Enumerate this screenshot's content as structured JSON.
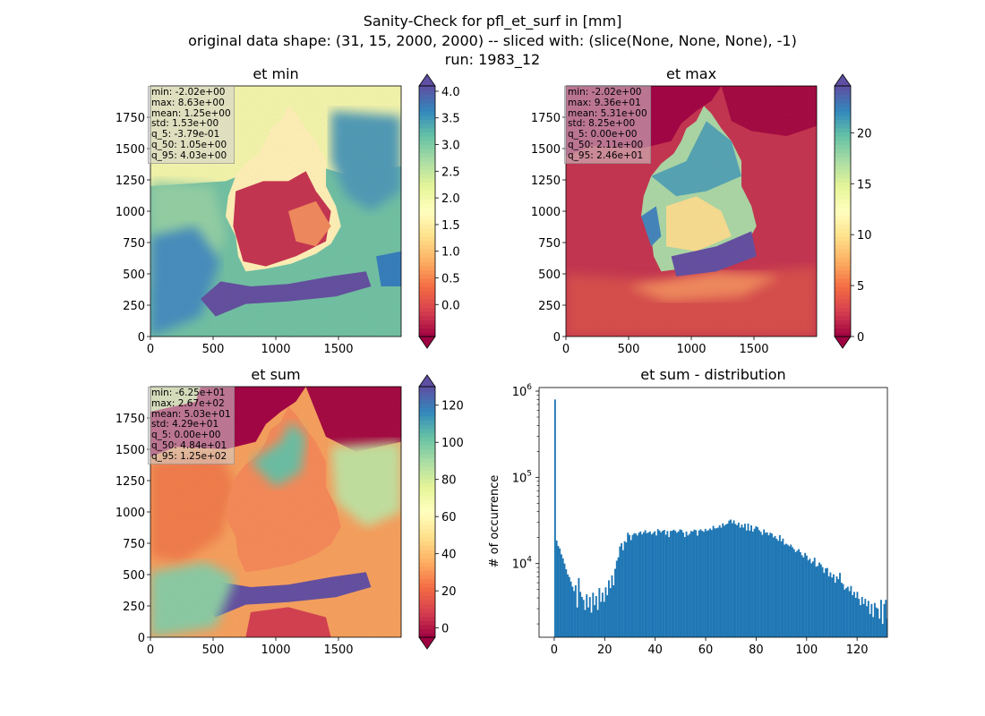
{
  "suptitle": [
    "Sanity-Check for pfl_et_surf in [mm]",
    "original data shape: (31, 15, 2000, 2000) -- sliced with: (slice(None, None, None), -1)",
    "run: 1983_12"
  ],
  "colors": {
    "spectral": [
      "#9e0142",
      "#d53e4f",
      "#f46d43",
      "#fdae61",
      "#fee08b",
      "#ffffbf",
      "#e6f598",
      "#abdda4",
      "#66c2a5",
      "#3288bd",
      "#5e4fa2"
    ],
    "bar": "#1f77b4"
  },
  "chart_data": [
    {
      "type": "heatmap",
      "title": "et min",
      "x_ticks": [
        0,
        500,
        1000,
        1500
      ],
      "y_ticks": [
        0,
        250,
        500,
        750,
        1000,
        1250,
        1500,
        1750
      ],
      "xlim": [
        0,
        2000
      ],
      "ylim": [
        0,
        2000
      ],
      "colorbar": {
        "min": -0.6,
        "max": 4.1,
        "ticks": [
          "0.0",
          "0.5",
          "1.0",
          "1.5",
          "2.0",
          "2.5",
          "3.0",
          "3.5",
          "4.0"
        ],
        "tick_values": [
          0,
          0.5,
          1,
          1.5,
          2,
          2.5,
          3,
          3.5,
          4
        ],
        "extend": "both"
      },
      "stats": [
        "min: -2.02e+00",
        "max: 8.63e+00",
        "mean: 1.25e+00",
        "std: 1.53e+00",
        "q_5: -3.79e-01",
        "q_50: 1.05e+00",
        "q_95: 4.03e+00"
      ]
    },
    {
      "type": "heatmap",
      "title": "et max",
      "x_ticks": [
        0,
        500,
        1000,
        1500
      ],
      "y_ticks": [
        0,
        250,
        500,
        750,
        1000,
        1250,
        1500,
        1750
      ],
      "xlim": [
        0,
        2000
      ],
      "ylim": [
        0,
        2000
      ],
      "colorbar": {
        "min": 0,
        "max": 24.6,
        "ticks": [
          "0",
          "5",
          "10",
          "15",
          "20"
        ],
        "tick_values": [
          0,
          5,
          10,
          15,
          20
        ],
        "extend": "both"
      },
      "stats": [
        "min: -2.02e+00",
        "max: 9.36e+01",
        "mean: 5.31e+00",
        "std: 8.25e+00",
        "q_5: 0.00e+00",
        "q_50: 2.11e+00",
        "q_95: 2.46e+01"
      ]
    },
    {
      "type": "heatmap",
      "title": "et sum",
      "x_ticks": [
        0,
        500,
        1000,
        1500
      ],
      "y_ticks": [
        0,
        250,
        500,
        750,
        1000,
        1250,
        1500,
        1750
      ],
      "xlim": [
        0,
        2000
      ],
      "ylim": [
        0,
        2000
      ],
      "colorbar": {
        "min": -5,
        "max": 130,
        "ticks": [
          "0",
          "20",
          "40",
          "60",
          "80",
          "100",
          "120"
        ],
        "tick_values": [
          0,
          20,
          40,
          60,
          80,
          100,
          120
        ],
        "extend": "both"
      },
      "stats": [
        "min: -6.25e+01",
        "max: 2.67e+02",
        "mean: 5.03e+01",
        "std: 4.29e+01",
        "q_5: 0.00e+00",
        "q_50: 4.84e+01",
        "q_95: 1.25e+02"
      ]
    },
    {
      "type": "bar",
      "title": "et sum - distribution",
      "ylabel": "# of occurrence",
      "y_scale": "log",
      "xlim": [
        -6,
        132
      ],
      "ylim": [
        1400,
        1100000
      ],
      "x_ticks": [
        "0",
        "20",
        "40",
        "60",
        "80",
        "100",
        "120"
      ],
      "x_tick_values": [
        0,
        20,
        40,
        60,
        80,
        100,
        120
      ],
      "y_ticks": [
        {
          "value": 10000,
          "base": "10",
          "exp": "4"
        },
        {
          "value": 100000,
          "base": "10",
          "exp": "5"
        },
        {
          "value": 1000000,
          "base": "10",
          "exp": "6"
        }
      ],
      "x_start": 0,
      "bin_width": 0.627,
      "values": [
        800000,
        18500,
        16000,
        15000,
        12800,
        11500,
        10000,
        8600,
        7500,
        7000,
        6200,
        5400,
        4800,
        5600,
        3100,
        6800,
        4700,
        4100,
        3800,
        2900,
        4400,
        3100,
        4100,
        2700,
        4600,
        3300,
        4200,
        2900,
        5200,
        3600,
        4600,
        3600,
        5300,
        4300,
        6400,
        5200,
        7300,
        5600,
        8700,
        10800,
        11800,
        15800,
        17200,
        14300,
        18200,
        17600,
        22800,
        21500,
        18700,
        21500,
        22500,
        22300,
        21200,
        22800,
        23600,
        21800,
        23100,
        24400,
        22500,
        23000,
        23600,
        21800,
        22700,
        23700,
        21200,
        25100,
        24200,
        23000,
        24000,
        24600,
        21600,
        23900,
        20300,
        23900,
        24000,
        24700,
        24000,
        22800,
        23600,
        24900,
        24500,
        22900,
        20300,
        23500,
        21200,
        22100,
        23900,
        23500,
        24800,
        24400,
        21100,
        24200,
        25000,
        24000,
        23400,
        25300,
        23900,
        24500,
        25500,
        24500,
        27400,
        25600,
        25700,
        26100,
        27800,
        26100,
        29300,
        27500,
        28500,
        29000,
        31500,
        32400,
        29400,
        31700,
        28800,
        27900,
        29800,
        26100,
        28300,
        26200,
        29000,
        24200,
        29100,
        24100,
        27800,
        23500,
        25400,
        27100,
        26400,
        24400,
        23300,
        21500,
        24900,
        22800,
        23000,
        21300,
        22800,
        22300,
        20100,
        20900,
        19400,
        18400,
        21400,
        18100,
        19500,
        16600,
        17000,
        16600,
        15900,
        16600,
        15500,
        14700,
        13600,
        14100,
        14700,
        13600,
        12500,
        11800,
        13300,
        12400,
        10900,
        11400,
        10100,
        10600,
        11700,
        9200,
        9400,
        10300,
        9800,
        9100,
        7800,
        8800,
        8900,
        7100,
        7900,
        6900,
        7500,
        6000,
        7100,
        6600,
        7800,
        6000,
        5800,
        5000,
        5200,
        5400,
        4800,
        5500,
        4300,
        4700,
        4000,
        4700,
        3900,
        3300,
        4100,
        3400,
        3900,
        3200,
        3700,
        2600,
        3400,
        2400,
        3500,
        3100,
        3000,
        2300,
        3800,
        2000,
        3400,
        3800,
        2300,
        4100,
        2400
      ]
    }
  ]
}
